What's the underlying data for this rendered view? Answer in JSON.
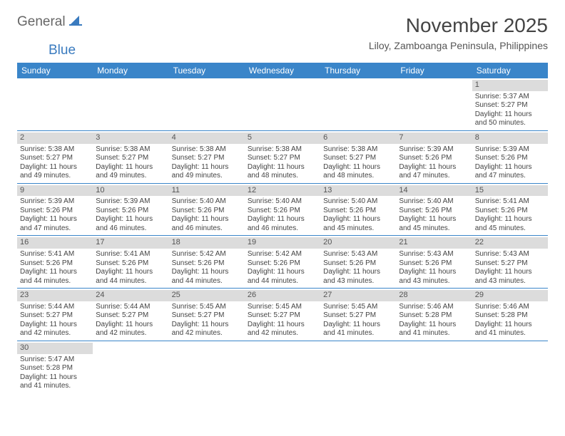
{
  "logo": {
    "general": "General",
    "blue": "Blue"
  },
  "title": "November 2025",
  "location": "Liloy, Zamboanga Peninsula, Philippines",
  "colors": {
    "header_bg": "#3a85c9",
    "header_text": "#ffffff",
    "daynum_bg": "#dcdcdc",
    "row_border": "#3a85c9",
    "body_text": "#444444",
    "logo_gray": "#666666",
    "logo_blue": "#3a7bbf"
  },
  "day_headers": [
    "Sunday",
    "Monday",
    "Tuesday",
    "Wednesday",
    "Thursday",
    "Friday",
    "Saturday"
  ],
  "weeks": [
    [
      null,
      null,
      null,
      null,
      null,
      null,
      {
        "n": "1",
        "sunrise": "5:37 AM",
        "sunset": "5:27 PM",
        "daylight": "11 hours and 50 minutes."
      }
    ],
    [
      {
        "n": "2",
        "sunrise": "5:38 AM",
        "sunset": "5:27 PM",
        "daylight": "11 hours and 49 minutes."
      },
      {
        "n": "3",
        "sunrise": "5:38 AM",
        "sunset": "5:27 PM",
        "daylight": "11 hours and 49 minutes."
      },
      {
        "n": "4",
        "sunrise": "5:38 AM",
        "sunset": "5:27 PM",
        "daylight": "11 hours and 49 minutes."
      },
      {
        "n": "5",
        "sunrise": "5:38 AM",
        "sunset": "5:27 PM",
        "daylight": "11 hours and 48 minutes."
      },
      {
        "n": "6",
        "sunrise": "5:38 AM",
        "sunset": "5:27 PM",
        "daylight": "11 hours and 48 minutes."
      },
      {
        "n": "7",
        "sunrise": "5:39 AM",
        "sunset": "5:26 PM",
        "daylight": "11 hours and 47 minutes."
      },
      {
        "n": "8",
        "sunrise": "5:39 AM",
        "sunset": "5:26 PM",
        "daylight": "11 hours and 47 minutes."
      }
    ],
    [
      {
        "n": "9",
        "sunrise": "5:39 AM",
        "sunset": "5:26 PM",
        "daylight": "11 hours and 47 minutes."
      },
      {
        "n": "10",
        "sunrise": "5:39 AM",
        "sunset": "5:26 PM",
        "daylight": "11 hours and 46 minutes."
      },
      {
        "n": "11",
        "sunrise": "5:40 AM",
        "sunset": "5:26 PM",
        "daylight": "11 hours and 46 minutes."
      },
      {
        "n": "12",
        "sunrise": "5:40 AM",
        "sunset": "5:26 PM",
        "daylight": "11 hours and 46 minutes."
      },
      {
        "n": "13",
        "sunrise": "5:40 AM",
        "sunset": "5:26 PM",
        "daylight": "11 hours and 45 minutes."
      },
      {
        "n": "14",
        "sunrise": "5:40 AM",
        "sunset": "5:26 PM",
        "daylight": "11 hours and 45 minutes."
      },
      {
        "n": "15",
        "sunrise": "5:41 AM",
        "sunset": "5:26 PM",
        "daylight": "11 hours and 45 minutes."
      }
    ],
    [
      {
        "n": "16",
        "sunrise": "5:41 AM",
        "sunset": "5:26 PM",
        "daylight": "11 hours and 44 minutes."
      },
      {
        "n": "17",
        "sunrise": "5:41 AM",
        "sunset": "5:26 PM",
        "daylight": "11 hours and 44 minutes."
      },
      {
        "n": "18",
        "sunrise": "5:42 AM",
        "sunset": "5:26 PM",
        "daylight": "11 hours and 44 minutes."
      },
      {
        "n": "19",
        "sunrise": "5:42 AM",
        "sunset": "5:26 PM",
        "daylight": "11 hours and 44 minutes."
      },
      {
        "n": "20",
        "sunrise": "5:43 AM",
        "sunset": "5:26 PM",
        "daylight": "11 hours and 43 minutes."
      },
      {
        "n": "21",
        "sunrise": "5:43 AM",
        "sunset": "5:26 PM",
        "daylight": "11 hours and 43 minutes."
      },
      {
        "n": "22",
        "sunrise": "5:43 AM",
        "sunset": "5:27 PM",
        "daylight": "11 hours and 43 minutes."
      }
    ],
    [
      {
        "n": "23",
        "sunrise": "5:44 AM",
        "sunset": "5:27 PM",
        "daylight": "11 hours and 42 minutes."
      },
      {
        "n": "24",
        "sunrise": "5:44 AM",
        "sunset": "5:27 PM",
        "daylight": "11 hours and 42 minutes."
      },
      {
        "n": "25",
        "sunrise": "5:45 AM",
        "sunset": "5:27 PM",
        "daylight": "11 hours and 42 minutes."
      },
      {
        "n": "26",
        "sunrise": "5:45 AM",
        "sunset": "5:27 PM",
        "daylight": "11 hours and 42 minutes."
      },
      {
        "n": "27",
        "sunrise": "5:45 AM",
        "sunset": "5:27 PM",
        "daylight": "11 hours and 41 minutes."
      },
      {
        "n": "28",
        "sunrise": "5:46 AM",
        "sunset": "5:28 PM",
        "daylight": "11 hours and 41 minutes."
      },
      {
        "n": "29",
        "sunrise": "5:46 AM",
        "sunset": "5:28 PM",
        "daylight": "11 hours and 41 minutes."
      }
    ],
    [
      {
        "n": "30",
        "sunrise": "5:47 AM",
        "sunset": "5:28 PM",
        "daylight": "11 hours and 41 minutes."
      },
      null,
      null,
      null,
      null,
      null,
      null
    ]
  ],
  "labels": {
    "sunrise": "Sunrise:",
    "sunset": "Sunset:",
    "daylight": "Daylight:"
  }
}
